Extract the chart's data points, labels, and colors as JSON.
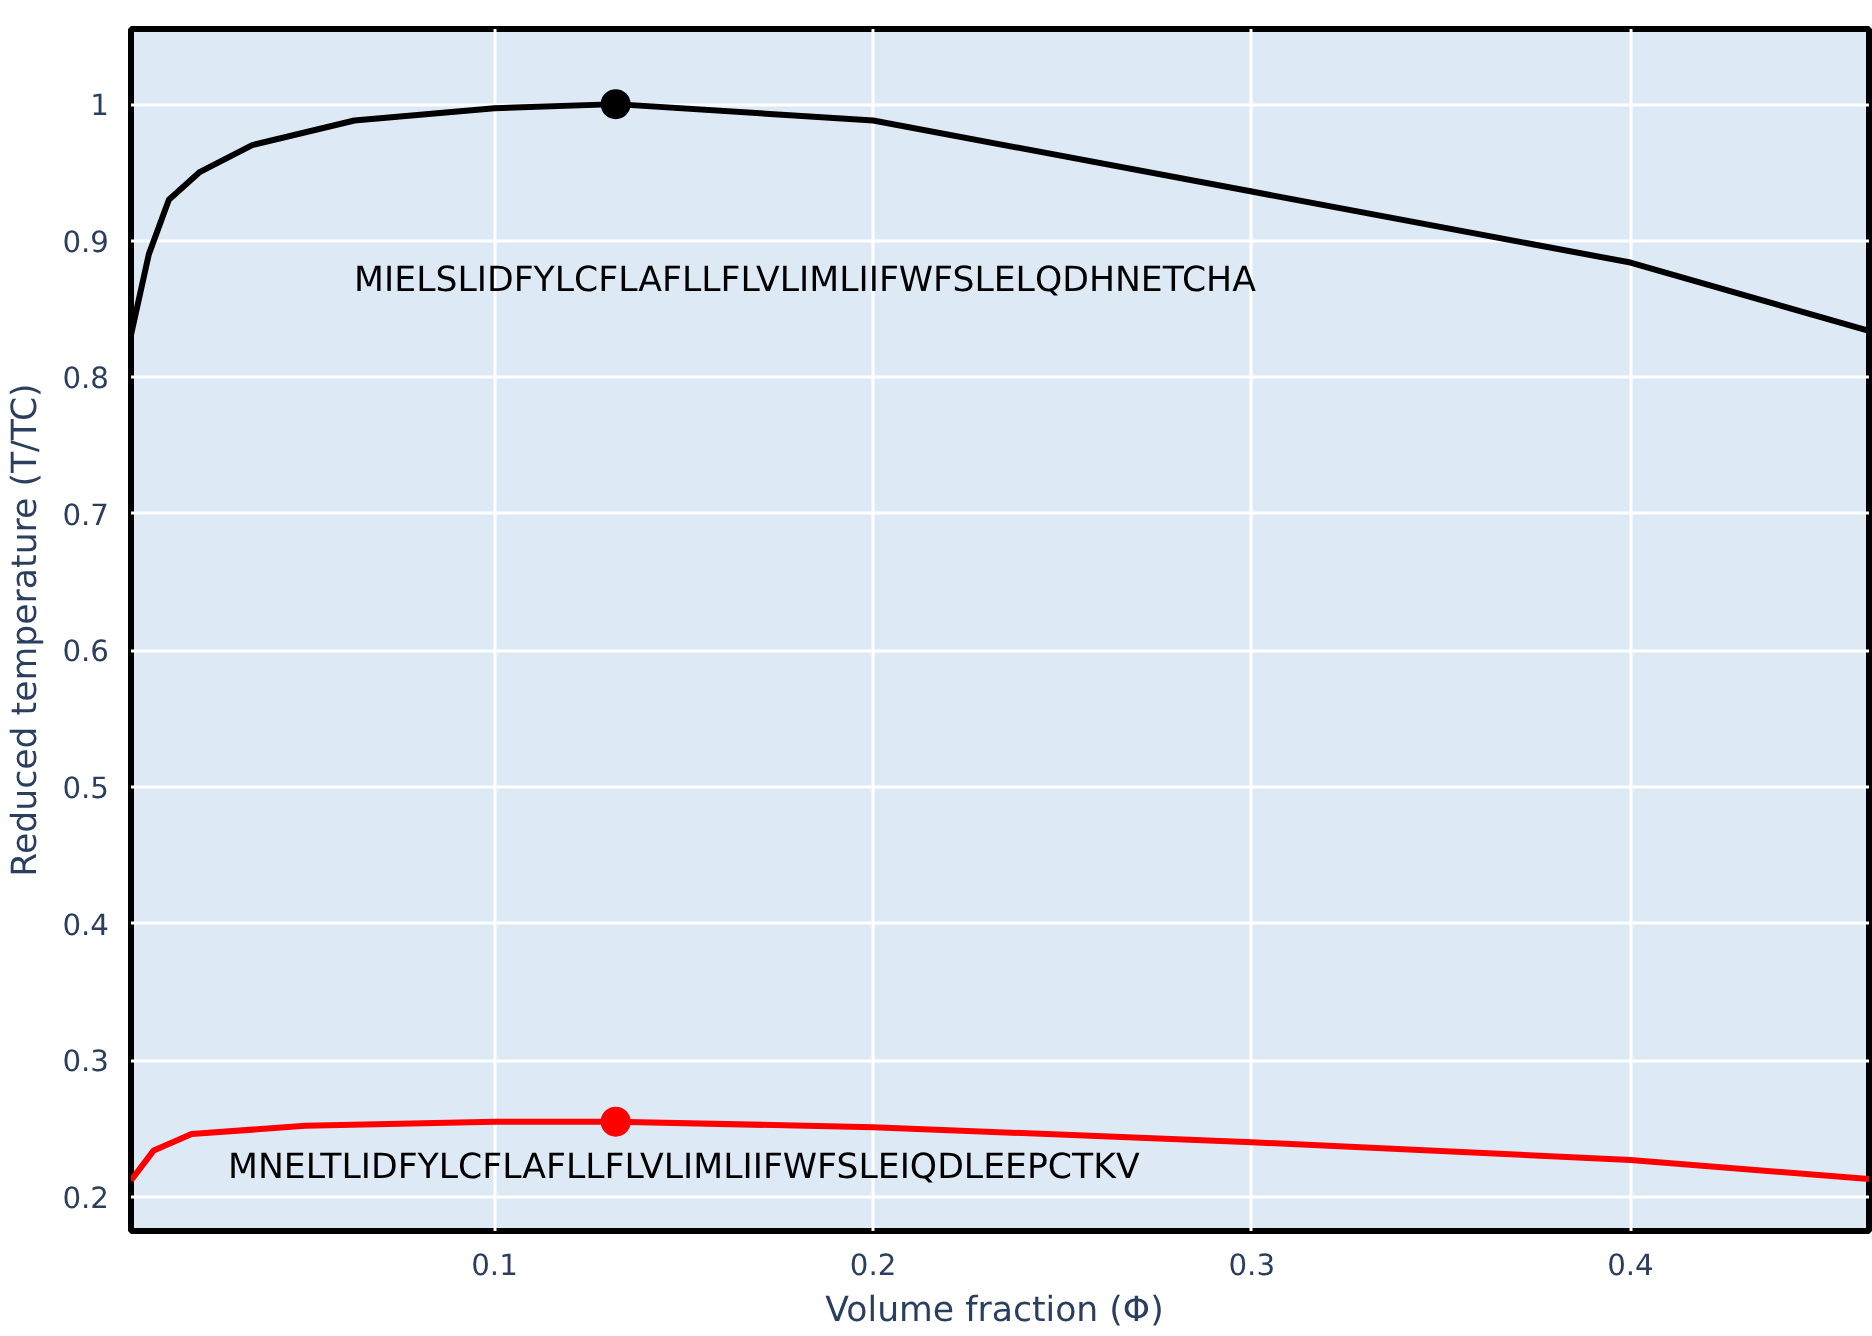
{
  "chart_data": {
    "type": "line",
    "xlabel": "Volume fraction  (Φ)",
    "ylabel": "Reduced temperature (T/TC)",
    "xlim": [
      0.004,
      0.463
    ],
    "ylim": [
      0.175,
      1.055
    ],
    "xticks": [
      0.1,
      0.2,
      0.3,
      0.4
    ],
    "yticks": [
      0.2,
      0.3,
      0.4,
      0.5,
      0.6,
      0.7,
      0.8,
      0.9,
      1
    ],
    "grid": true,
    "marker": "none",
    "line_style": "solid",
    "series": [
      {
        "name": "MIELSLIDFYLCFLAFLLFLVLIMLIIFWFSLELQDHNETCHA",
        "color": "#000000",
        "x": [
          0.004,
          0.0087,
          0.014,
          0.022,
          0.036,
          0.063,
          0.1,
          0.132,
          0.2,
          0.3,
          0.4,
          0.463
        ],
        "values": [
          0.831,
          0.89,
          0.93,
          0.95,
          0.97,
          0.988,
          0.997,
          1.0,
          0.988,
          0.936,
          0.884,
          0.834
        ]
      },
      {
        "name": "MNELTLIDFYLCFLAFLLFLVLIMLIIFWFSLEIQDLEEPCTKV",
        "color": "#ff0000",
        "x": [
          0.004,
          0.01,
          0.02,
          0.05,
          0.1,
          0.132,
          0.2,
          0.3,
          0.4,
          0.463
        ],
        "values": [
          0.212,
          0.234,
          0.246,
          0.252,
          0.255,
          0.255,
          0.251,
          0.24,
          0.227,
          0.213
        ]
      },
      {
        "type": "scatter",
        "marker": "circle",
        "color": "#000000",
        "x": [
          0.132
        ],
        "values": [
          1.0
        ]
      },
      {
        "type": "scatter",
        "marker": "circle",
        "color": "#ff0000",
        "x": [
          0.132
        ],
        "values": [
          0.255
        ]
      }
    ]
  }
}
